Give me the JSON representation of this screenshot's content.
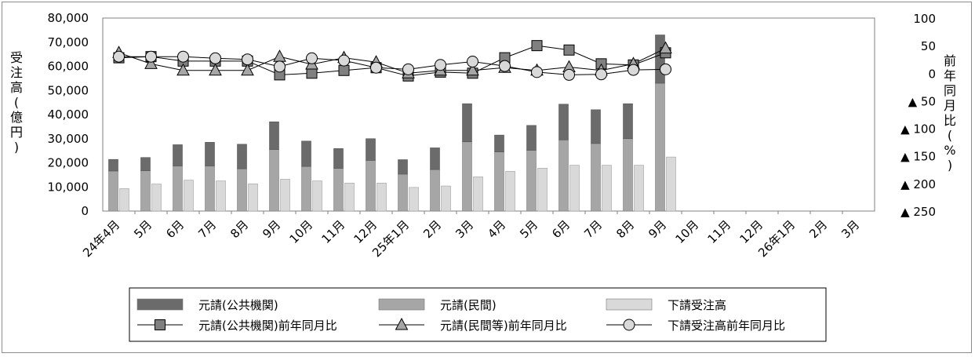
{
  "chart_data": {
    "type": "bar",
    "categories": [
      "24年4月",
      "5月",
      "6月",
      "7月",
      "8月",
      "9月",
      "10月",
      "11月",
      "12月",
      "25年1月",
      "2月",
      "3月",
      "4月",
      "5月",
      "6月",
      "7月",
      "8月",
      "9月",
      "10月",
      "11月",
      "12月",
      "26年1月",
      "2月",
      "3月"
    ],
    "y_left": {
      "label_chars": [
        "受",
        "注",
        "高",
        "(",
        "億",
        "円",
        ")"
      ],
      "ticks": [
        "0",
        "10,000",
        "20,000",
        "30,000",
        "40,000",
        "50,000",
        "60,000",
        "70,000",
        "80,000"
      ],
      "ylim": [
        0,
        80000
      ]
    },
    "y_right": {
      "label_chars": [
        "前",
        "年",
        "同",
        "月",
        "比",
        "(",
        "%",
        ")"
      ],
      "ticks": [
        "▲ 250",
        "▲ 200",
        "▲ 150",
        "▲ 100",
        "▲ 50",
        "0",
        "50",
        "100"
      ],
      "tick_values": [
        -250,
        -200,
        -150,
        -100,
        -50,
        0,
        50,
        100
      ],
      "ylim": [
        -250,
        100
      ]
    },
    "series": [
      {
        "name": "元請(公共機関)",
        "kind": "bar",
        "color": "#6b6b6b",
        "values": [
          4800,
          5500,
          8800,
          9800,
          10200,
          11500,
          10500,
          8200,
          9000,
          6000,
          9000,
          15800,
          7000,
          10300,
          14800,
          14000,
          14500,
          20000,
          null,
          null,
          null,
          null,
          null,
          null
        ]
      },
      {
        "name": "元請(民間)",
        "kind": "bar",
        "color": "#a6a6a6",
        "values": [
          16600,
          16700,
          18700,
          18700,
          17500,
          25500,
          18500,
          17700,
          21000,
          15300,
          17200,
          28700,
          24500,
          25200,
          29500,
          28000,
          30000,
          53000,
          null,
          null,
          null,
          null,
          null,
          null
        ]
      },
      {
        "name": "下請受注高",
        "kind": "bar",
        "color": "#d9d9d9",
        "values": [
          9300,
          11200,
          12800,
          12500,
          11300,
          13200,
          12500,
          11600,
          11600,
          9800,
          10400,
          14200,
          16500,
          17800,
          19000,
          19000,
          19000,
          22400,
          null,
          null,
          null,
          null,
          null,
          null
        ]
      },
      {
        "name": "元請(公共機関)前年同月比",
        "kind": "line",
        "marker": "square",
        "color": "#808080",
        "values": [
          28,
          30,
          22,
          22,
          22,
          -3,
          0,
          5,
          10,
          -5,
          2,
          0,
          28,
          50,
          42,
          17,
          15,
          37,
          null,
          null,
          null,
          null,
          null,
          null
        ]
      },
      {
        "name": "元請(民間等)前年同月比",
        "kind": "line",
        "marker": "triangle",
        "color": "#a6a6a6",
        "values": [
          37,
          17,
          5,
          5,
          5,
          30,
          16,
          28,
          20,
          0,
          5,
          5,
          10,
          5,
          11,
          5,
          17,
          45,
          null,
          null,
          null,
          null,
          null,
          null
        ]
      },
      {
        "name": "下請受注高前年同月比",
        "kind": "line",
        "marker": "circle",
        "color": "#d9d9d9",
        "values": [
          30,
          30,
          30,
          27,
          25,
          12,
          27,
          23,
          10,
          7,
          15,
          21,
          13,
          2,
          -3,
          -2,
          6,
          7,
          null,
          null,
          null,
          null,
          null,
          null
        ]
      }
    ],
    "legend": {
      "placement": "bottom",
      "items": [
        "元請(公共機関)",
        "元請(民間)",
        "下請受注高",
        "元請(公共機関)前年同月比",
        "元請(民間等)前年同月比",
        "下請受注高前年同月比"
      ]
    },
    "grid": false
  }
}
